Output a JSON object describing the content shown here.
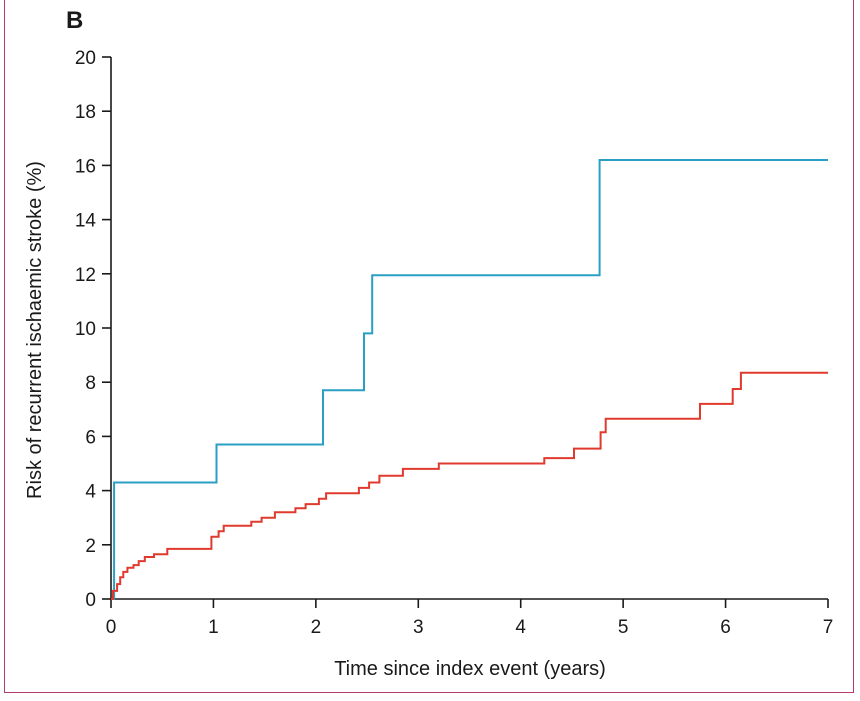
{
  "panel_label": "B",
  "chart_data": {
    "type": "line",
    "step": true,
    "title": "",
    "xlabel": "Time since index event (years)",
    "ylabel": "Risk of recurrent ischaemic stroke (%)",
    "xlim": [
      0,
      7
    ],
    "ylim": [
      0,
      20
    ],
    "x_ticks": [
      0,
      1,
      2,
      3,
      4,
      5,
      6,
      7
    ],
    "y_ticks": [
      0,
      2,
      4,
      6,
      8,
      10,
      12,
      14,
      16,
      18,
      20
    ],
    "grid": false,
    "legend": "none",
    "series": [
      {
        "color": "#2a9fc4",
        "points": [
          [
            0,
            0
          ],
          [
            0.03,
            0
          ],
          [
            0.03,
            4.3
          ],
          [
            1.03,
            4.3
          ],
          [
            1.03,
            5.7
          ],
          [
            2.07,
            5.7
          ],
          [
            2.07,
            7.7
          ],
          [
            2.47,
            7.7
          ],
          [
            2.47,
            9.8
          ],
          [
            2.55,
            9.8
          ],
          [
            2.55,
            11.95
          ],
          [
            4.77,
            11.95
          ],
          [
            4.77,
            16.2
          ],
          [
            7.0,
            16.2
          ]
        ]
      },
      {
        "color": "#e03a2f",
        "points": [
          [
            0,
            0
          ],
          [
            0.02,
            0
          ],
          [
            0.02,
            0.3
          ],
          [
            0.06,
            0.3
          ],
          [
            0.06,
            0.55
          ],
          [
            0.09,
            0.55
          ],
          [
            0.09,
            0.8
          ],
          [
            0.12,
            0.8
          ],
          [
            0.12,
            1.0
          ],
          [
            0.16,
            1.0
          ],
          [
            0.16,
            1.15
          ],
          [
            0.22,
            1.15
          ],
          [
            0.22,
            1.25
          ],
          [
            0.27,
            1.25
          ],
          [
            0.27,
            1.4
          ],
          [
            0.33,
            1.4
          ],
          [
            0.33,
            1.55
          ],
          [
            0.42,
            1.55
          ],
          [
            0.42,
            1.65
          ],
          [
            0.55,
            1.65
          ],
          [
            0.55,
            1.85
          ],
          [
            0.98,
            1.85
          ],
          [
            0.98,
            2.3
          ],
          [
            1.05,
            2.3
          ],
          [
            1.05,
            2.5
          ],
          [
            1.1,
            2.5
          ],
          [
            1.1,
            2.7
          ],
          [
            1.37,
            2.7
          ],
          [
            1.37,
            2.85
          ],
          [
            1.47,
            2.85
          ],
          [
            1.47,
            3.0
          ],
          [
            1.6,
            3.0
          ],
          [
            1.6,
            3.2
          ],
          [
            1.8,
            3.2
          ],
          [
            1.8,
            3.35
          ],
          [
            1.9,
            3.35
          ],
          [
            1.9,
            3.5
          ],
          [
            2.03,
            3.5
          ],
          [
            2.03,
            3.7
          ],
          [
            2.1,
            3.7
          ],
          [
            2.1,
            3.9
          ],
          [
            2.42,
            3.9
          ],
          [
            2.42,
            4.1
          ],
          [
            2.52,
            4.1
          ],
          [
            2.52,
            4.3
          ],
          [
            2.62,
            4.3
          ],
          [
            2.62,
            4.55
          ],
          [
            2.85,
            4.55
          ],
          [
            2.85,
            4.8
          ],
          [
            3.2,
            4.8
          ],
          [
            3.2,
            5.0
          ],
          [
            4.23,
            5.0
          ],
          [
            4.23,
            5.2
          ],
          [
            4.52,
            5.2
          ],
          [
            4.52,
            5.55
          ],
          [
            4.78,
            5.55
          ],
          [
            4.78,
            6.15
          ],
          [
            4.83,
            6.15
          ],
          [
            4.83,
            6.65
          ],
          [
            5.75,
            6.65
          ],
          [
            5.75,
            7.2
          ],
          [
            6.07,
            7.2
          ],
          [
            6.07,
            7.75
          ],
          [
            6.15,
            7.75
          ],
          [
            6.15,
            8.35
          ],
          [
            7.0,
            8.35
          ]
        ]
      }
    ]
  }
}
